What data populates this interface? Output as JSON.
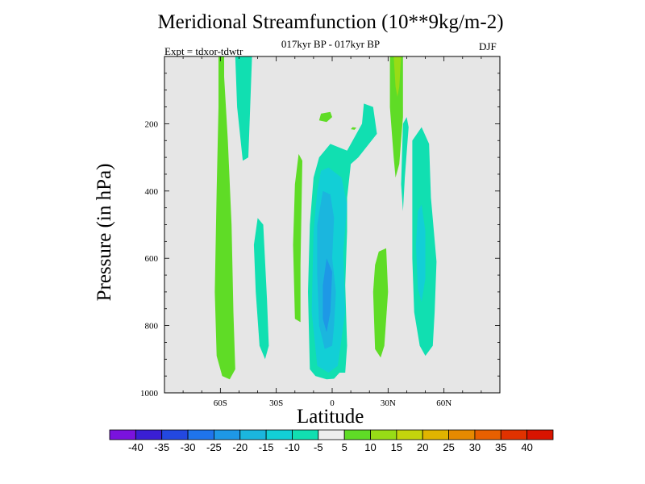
{
  "chart_data": {
    "type": "heatmap",
    "title": "Meridional Streamfunction (10**9kg/m-2)",
    "subtitle": "017kyr BP - 017kyr BP",
    "experiment": "Expt = tdxor-tdwtr",
    "season": "DJF",
    "xlabel": "Latitude",
    "ylabel": "Pressure (in hPa)",
    "x_ticks": [
      {
        "value": -60,
        "label": "60S"
      },
      {
        "value": -30,
        "label": "30S"
      },
      {
        "value": 0,
        "label": "0"
      },
      {
        "value": 30,
        "label": "30N"
      },
      {
        "value": 60,
        "label": "60N"
      }
    ],
    "y_ticks": [
      {
        "value": 200,
        "label": "200"
      },
      {
        "value": 400,
        "label": "400"
      },
      {
        "value": 600,
        "label": "600"
      },
      {
        "value": 800,
        "label": "800"
      },
      {
        "value": 1000,
        "label": "1000"
      }
    ],
    "xlim": [
      -90,
      90
    ],
    "ylim": [
      1000,
      0
    ],
    "colorbar": {
      "labels": [
        "-40",
        "-35",
        "-30",
        "-25",
        "-20",
        "-15",
        "-10",
        "-5",
        "5",
        "10",
        "15",
        "20",
        "25",
        "30",
        "35",
        "40"
      ],
      "colors": [
        "#7a12de",
        "#3a1fd4",
        "#2348e0",
        "#1f74ec",
        "#1e98e6",
        "#1bb6de",
        "#12cfd6",
        "#11dfb1",
        "#eeeeee",
        "#5fdc26",
        "#98dc16",
        "#c4d40c",
        "#e0b400",
        "#e68a00",
        "#e86000",
        "#e03200",
        "#d81400"
      ]
    },
    "background_color": "#e6e6e6",
    "regions": [
      {
        "name": "green-band-60s",
        "level": 5,
        "color": "#5fdc26",
        "points": [
          [
            -61,
            0
          ],
          [
            -58,
            0
          ],
          [
            -58,
            60
          ],
          [
            -56,
            250
          ],
          [
            -54,
            500
          ],
          [
            -53,
            760
          ],
          [
            -52,
            930
          ],
          [
            -55,
            960
          ],
          [
            -59,
            950
          ],
          [
            -62,
            890
          ],
          [
            -63,
            700
          ],
          [
            -62,
            400
          ],
          [
            -61,
            150
          ]
        ]
      },
      {
        "name": "cyan-band-50s-top",
        "level": -10,
        "color": "#11dfb1",
        "points": [
          [
            -52,
            0
          ],
          [
            -43,
            0
          ],
          [
            -44,
            150
          ],
          [
            -45,
            300
          ],
          [
            -48,
            310
          ],
          [
            -51,
            150
          ]
        ]
      },
      {
        "name": "cyan-band-40s",
        "level": -10,
        "color": "#11dfb1",
        "points": [
          [
            -40,
            480
          ],
          [
            -37,
            500
          ],
          [
            -35,
            720
          ],
          [
            -34,
            860
          ],
          [
            -36,
            900
          ],
          [
            -39,
            860
          ],
          [
            -41,
            700
          ],
          [
            -42,
            560
          ]
        ]
      },
      {
        "name": "green-band-20s",
        "level": 5,
        "color": "#5fdc26",
        "points": [
          [
            -18,
            290
          ],
          [
            -16,
            310
          ],
          [
            -17,
            620
          ],
          [
            -17,
            790
          ],
          [
            -20,
            780
          ],
          [
            -21,
            560
          ],
          [
            -20,
            380
          ]
        ]
      },
      {
        "name": "cyan-core-equator",
        "level": -10,
        "color": "#11dfb1",
        "points": [
          [
            -7,
            300
          ],
          [
            -1,
            260
          ],
          [
            8,
            280
          ],
          [
            16,
            200
          ],
          [
            17,
            140
          ],
          [
            22,
            150
          ],
          [
            24,
            230
          ],
          [
            14,
            300
          ],
          [
            10,
            320
          ],
          [
            8,
            420
          ],
          [
            8,
            520
          ],
          [
            7,
            680
          ],
          [
            8,
            860
          ],
          [
            7,
            940
          ],
          [
            4,
            940
          ],
          [
            1,
            958
          ],
          [
            -3,
            960
          ],
          [
            -9,
            950
          ],
          [
            -12,
            930
          ],
          [
            -13,
            700
          ],
          [
            -12,
            500
          ],
          [
            -10,
            360
          ]
        ]
      },
      {
        "name": "blue-core-15",
        "level": -15,
        "color": "#12cfd6",
        "points": [
          [
            -6,
            340
          ],
          [
            -2,
            330
          ],
          [
            5,
            360
          ],
          [
            8,
            440
          ],
          [
            6,
            580
          ],
          [
            7,
            760
          ],
          [
            3,
            920
          ],
          [
            -2,
            940
          ],
          [
            -8,
            920
          ],
          [
            -11,
            760
          ],
          [
            -10,
            520
          ],
          [
            -8,
            400
          ]
        ]
      },
      {
        "name": "blue-core-20",
        "level": -20,
        "color": "#1bb6de",
        "points": [
          [
            -5,
            400
          ],
          [
            -1,
            410
          ],
          [
            1,
            480
          ],
          [
            0,
            600
          ],
          [
            2,
            700
          ],
          [
            1,
            800
          ],
          [
            0,
            860
          ],
          [
            -4,
            870
          ],
          [
            -7,
            800
          ],
          [
            -8,
            650
          ],
          [
            -8,
            500
          ]
        ]
      },
      {
        "name": "blue-core-25",
        "level": -25,
        "color": "#1e98e6",
        "points": [
          [
            -3,
            600
          ],
          [
            0,
            640
          ],
          [
            -1,
            760
          ],
          [
            -3,
            820
          ],
          [
            -5,
            780
          ],
          [
            -5,
            680
          ]
        ]
      },
      {
        "name": "green-blob-top",
        "level": 5,
        "color": "#5fdc26",
        "points": [
          [
            -6,
            170
          ],
          [
            -1,
            165
          ],
          [
            0,
            180
          ],
          [
            -3,
            195
          ],
          [
            -7,
            190
          ]
        ]
      },
      {
        "name": "green-small-eq",
        "level": 5,
        "color": "#5fdc26",
        "points": [
          [
            11,
            210
          ],
          [
            13,
            212
          ],
          [
            12,
            218
          ],
          [
            10,
            216
          ]
        ]
      },
      {
        "name": "green-band-20n",
        "level": 5,
        "color": "#5fdc26",
        "points": [
          [
            25,
            580
          ],
          [
            29,
            570
          ],
          [
            30,
            700
          ],
          [
            28,
            860
          ],
          [
            26,
            895
          ],
          [
            23,
            870
          ],
          [
            22,
            700
          ],
          [
            23,
            620
          ]
        ]
      },
      {
        "name": "green-band-30n-top",
        "level": 5,
        "color": "#5fdc26",
        "points": [
          [
            31,
            0
          ],
          [
            38,
            0
          ],
          [
            38,
            180
          ],
          [
            36,
            320
          ],
          [
            34,
            360
          ],
          [
            33,
            300
          ],
          [
            31,
            150
          ]
        ]
      },
      {
        "name": "yellow-band-30n-top",
        "level": 10,
        "color": "#98dc16",
        "points": [
          [
            33,
            0
          ],
          [
            37,
            0
          ],
          [
            36,
            90
          ],
          [
            35,
            120
          ],
          [
            34,
            90
          ]
        ]
      },
      {
        "name": "cyan-band-40n-top",
        "level": -10,
        "color": "#11dfb1",
        "points": [
          [
            38,
            200
          ],
          [
            40,
            180
          ],
          [
            41,
            210
          ],
          [
            39,
            360
          ],
          [
            38,
            460
          ],
          [
            37,
            380
          ]
        ]
      },
      {
        "name": "cyan-band-45n",
        "level": -10,
        "color": "#11dfb1",
        "points": [
          [
            43,
            250
          ],
          [
            48,
            210
          ],
          [
            52,
            260
          ],
          [
            53,
            420
          ],
          [
            56,
            610
          ],
          [
            55,
            760
          ],
          [
            54,
            860
          ],
          [
            50,
            890
          ],
          [
            47,
            860
          ],
          [
            44,
            760
          ],
          [
            43,
            600
          ],
          [
            43,
            400
          ]
        ]
      },
      {
        "name": "blue-band-45n",
        "level": -15,
        "color": "#12cfd6",
        "points": [
          [
            46,
            460
          ],
          [
            48,
            440
          ],
          [
            50,
            520
          ],
          [
            50,
            660
          ],
          [
            48,
            730
          ],
          [
            46,
            690
          ],
          [
            45,
            560
          ]
        ]
      }
    ]
  }
}
